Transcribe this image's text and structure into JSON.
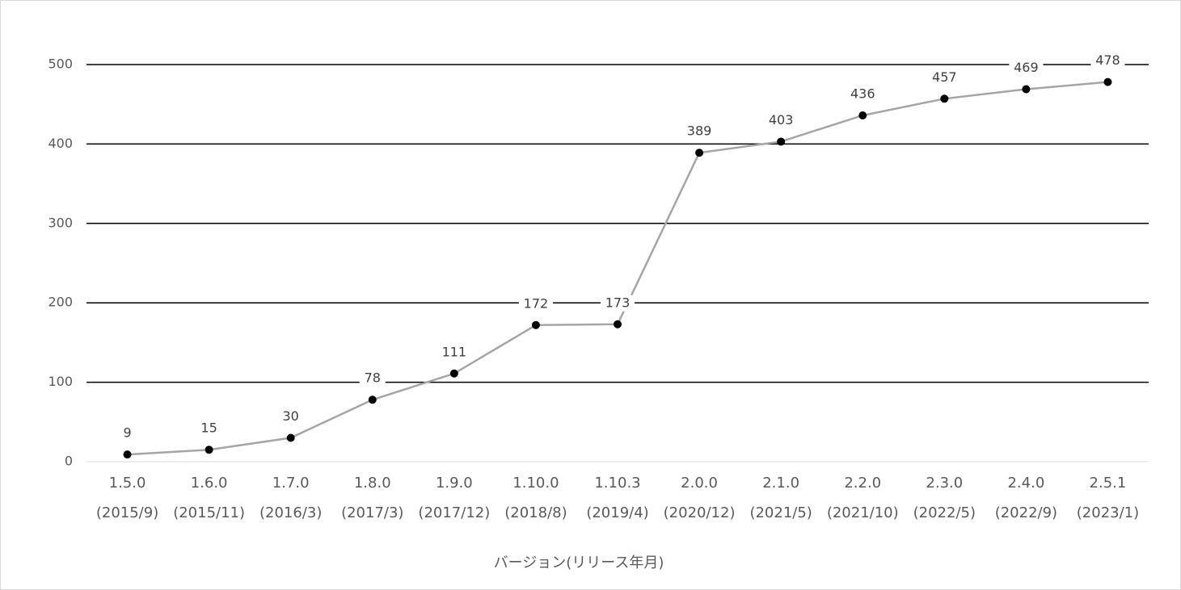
{
  "chart_data": {
    "type": "line",
    "categories": [
      "1.5.0",
      "1.6.0",
      "1.7.0",
      "1.8.0",
      "1.9.0",
      "1.10.0",
      "1.10.3",
      "2.0.0",
      "2.1.0",
      "2.2.0",
      "2.3.0",
      "2.4.0",
      "2.5.1"
    ],
    "release_dates": [
      "(2015/9)",
      "(2015/11)",
      "(2016/3)",
      "(2017/3)",
      "(2017/12)",
      "(2018/8)",
      "(2019/4)",
      "(2020/12)",
      "(2021/5)",
      "(2021/10)",
      "(2022/5)",
      "(2022/9)",
      "(2023/1)"
    ],
    "values": [
      9,
      15,
      30,
      78,
      111,
      172,
      173,
      389,
      403,
      436,
      457,
      469,
      478
    ],
    "color": "#a5a5a5",
    "marker_color": "#000000",
    "x_label": "バージョン(リリース年月)",
    "ylim": [
      0,
      500
    ],
    "yticks": [
      0,
      100,
      200,
      300,
      400,
      500
    ],
    "grid": true
  }
}
